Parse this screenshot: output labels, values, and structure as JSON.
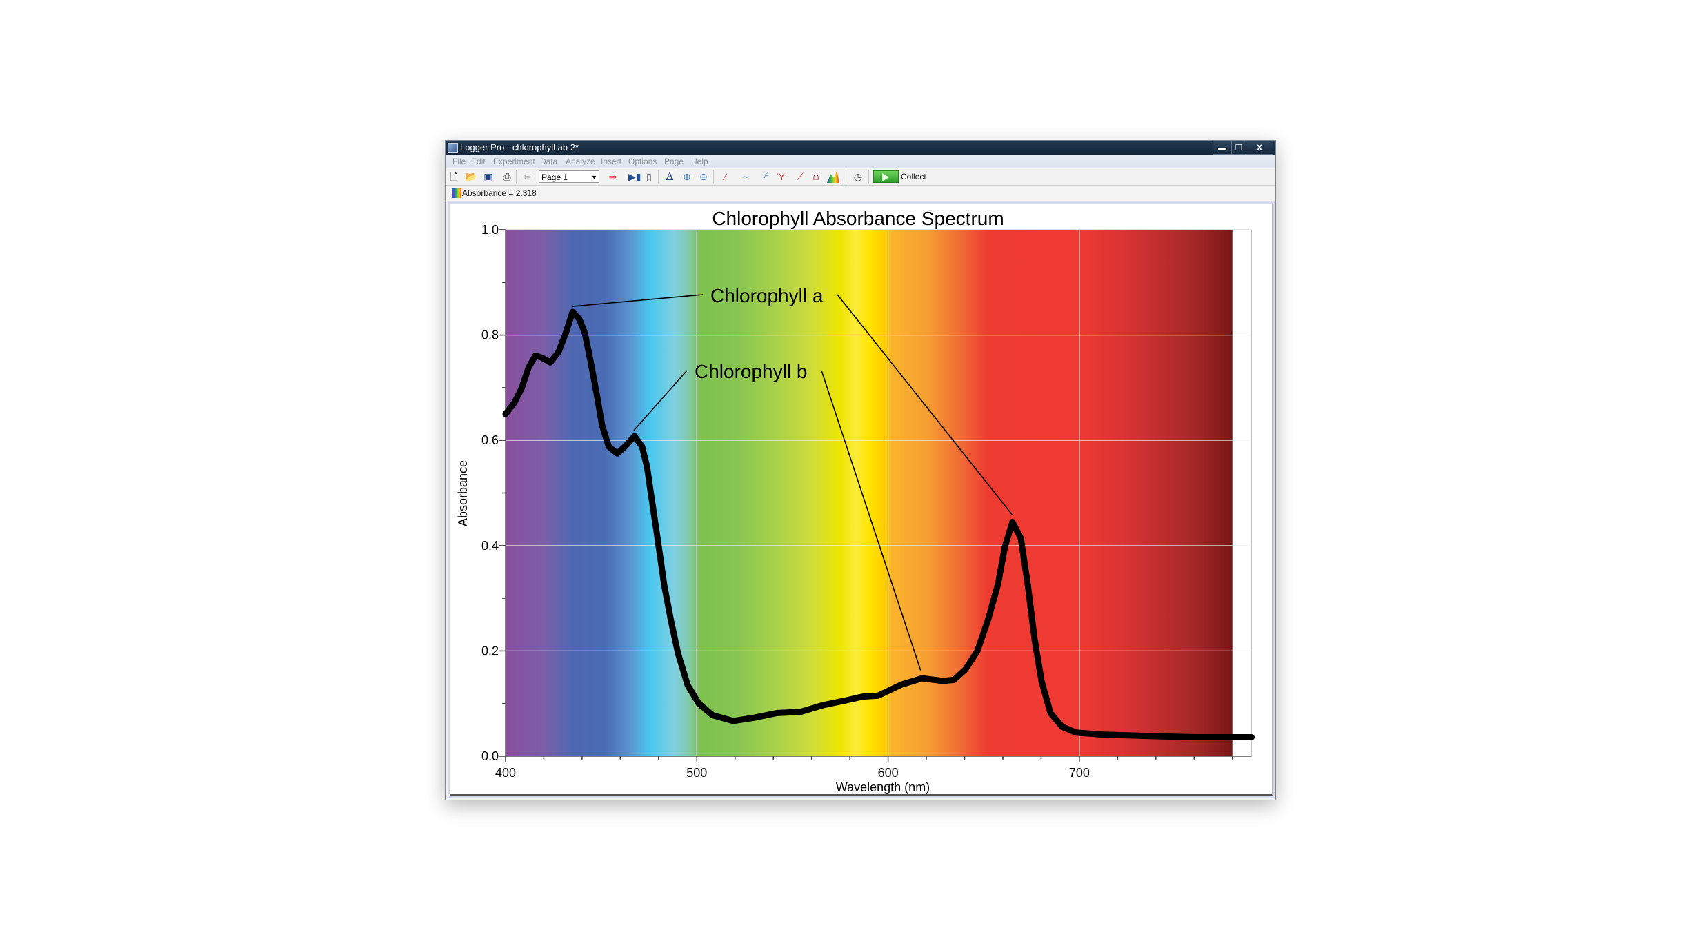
{
  "window": {
    "title": "Logger Pro - chlorophyll ab 2*",
    "controls": {
      "minimize": "▬",
      "maximize": "❐",
      "close": "X"
    }
  },
  "menu": [
    "File",
    "Edit",
    "Experiment",
    "Data",
    "Analyze",
    "Insert",
    "Options",
    "Page",
    "Help"
  ],
  "toolbar": {
    "page_select": "Page 1",
    "collect_label": "Collect",
    "icons": [
      "new-file-icon",
      "open-file-icon",
      "save-icon",
      "print-icon",
      "previous-page-icon",
      "next-page-icon",
      "data-browser-icon",
      "lab-interface-icon",
      "autoscale-icon",
      "zoom-in-icon",
      "zoom-out-icon",
      "examine-icon",
      "tangent-icon",
      "statistics-icon",
      "curve-fit-icon",
      "linear-fit-icon",
      "integral-icon",
      "spectrum-icon",
      "data-collection-icon",
      "collect-play-icon"
    ]
  },
  "status": {
    "readout": "Absorbance =  2.318"
  },
  "colors": {
    "titlebar": "#1a2d44",
    "collect": "#3fb13a",
    "curve": "#000000"
  },
  "chart_data": {
    "type": "line",
    "title": "Chlorophyll Absorbance Spectrum",
    "xlabel": "Wavelength (nm)",
    "ylabel": "Absorbance",
    "xlim": [
      400,
      790
    ],
    "ylim": [
      0.0,
      1.0
    ],
    "xticks": [
      "400",
      "500",
      "600",
      "700"
    ],
    "yticks": [
      "0.0",
      "0.2",
      "0.4",
      "0.6",
      "0.8",
      "1.0"
    ],
    "grid": true,
    "background": "visible-spectrum gradient 400–780 nm",
    "series": [
      {
        "points": [
          [
            400,
            0.65
          ],
          [
            404.7,
            0.672
          ],
          [
            408.4,
            0.699
          ],
          [
            412,
            0.738
          ],
          [
            415.6,
            0.761
          ],
          [
            419,
            0.757
          ],
          [
            423.4,
            0.748
          ],
          [
            427.7,
            0.768
          ],
          [
            431.4,
            0.803
          ],
          [
            435,
            0.844
          ],
          [
            438.6,
            0.83
          ],
          [
            441.5,
            0.803
          ],
          [
            444.4,
            0.751
          ],
          [
            447.6,
            0.689
          ],
          [
            450.5,
            0.628
          ],
          [
            454,
            0.588
          ],
          [
            458.4,
            0.575
          ],
          [
            462.4,
            0.588
          ],
          [
            467.4,
            0.608
          ],
          [
            471.4,
            0.588
          ],
          [
            474,
            0.549
          ],
          [
            475.7,
            0.506
          ],
          [
            479.3,
            0.418
          ],
          [
            482.9,
            0.326
          ],
          [
            486.5,
            0.257
          ],
          [
            490.2,
            0.195
          ],
          [
            495.2,
            0.135
          ],
          [
            501,
            0.1
          ],
          [
            508.2,
            0.078
          ],
          [
            519,
            0.067
          ],
          [
            529.8,
            0.073
          ],
          [
            542,
            0.082
          ],
          [
            554,
            0.084
          ],
          [
            566,
            0.097
          ],
          [
            578,
            0.106
          ],
          [
            586.4,
            0.113
          ],
          [
            594.7,
            0.115
          ],
          [
            607,
            0.136
          ],
          [
            617.8,
            0.148
          ],
          [
            628.6,
            0.143
          ],
          [
            634.4,
            0.145
          ],
          [
            640.5,
            0.165
          ],
          [
            646.7,
            0.2
          ],
          [
            652.4,
            0.261
          ],
          [
            657.5,
            0.327
          ],
          [
            661,
            0.397
          ],
          [
            665,
            0.445
          ],
          [
            669.4,
            0.414
          ],
          [
            673,
            0.327
          ],
          [
            676.6,
            0.222
          ],
          [
            680.2,
            0.143
          ],
          [
            684.9,
            0.082
          ],
          [
            691,
            0.056
          ],
          [
            698.2,
            0.045
          ],
          [
            712.7,
            0.041
          ],
          [
            740,
            0.038
          ],
          [
            760,
            0.036
          ],
          [
            790,
            0.036
          ]
        ]
      }
    ],
    "annotations": [
      {
        "text": "Chlorophyll a",
        "points_to": [
          [
            435,
            0.844
          ],
          [
            665,
            0.445
          ]
        ]
      },
      {
        "text": "Chlorophyll b",
        "points_to": [
          [
            467,
            0.608
          ],
          [
            617,
            0.15
          ]
        ]
      }
    ]
  }
}
